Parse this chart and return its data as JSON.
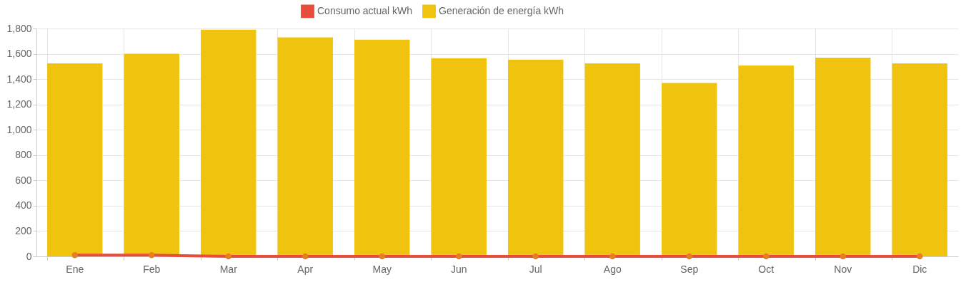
{
  "chart_data": {
    "type": "bar",
    "categories": [
      "Ene",
      "Feb",
      "Mar",
      "Apr",
      "May",
      "Jun",
      "Jul",
      "Ago",
      "Sep",
      "Oct",
      "Nov",
      "Dic"
    ],
    "series": [
      {
        "name": "Consumo actual kWh",
        "type": "line",
        "color": "#e74c3c",
        "values": [
          10,
          10,
          0,
          0,
          0,
          0,
          0,
          0,
          0,
          0,
          0,
          0
        ]
      },
      {
        "name": "Generación de energía kWh",
        "color": "#f0c30f",
        "values": [
          1525,
          1600,
          1790,
          1730,
          1712,
          1565,
          1554,
          1525,
          1369,
          1508,
          1569,
          1525
        ]
      }
    ],
    "ylim": [
      0,
      1800
    ],
    "yticks": [
      0,
      200,
      400,
      600,
      800,
      {
        "value": 1000,
        "label": "1,000"
      },
      {
        "value": 1200,
        "label": "1,200"
      },
      {
        "value": 1400,
        "label": "1,400"
      },
      {
        "value": 1600,
        "label": "1,600"
      },
      {
        "value": 1800,
        "label": "1,800"
      }
    ],
    "grid": true,
    "legend": "top",
    "marker": "circle"
  }
}
